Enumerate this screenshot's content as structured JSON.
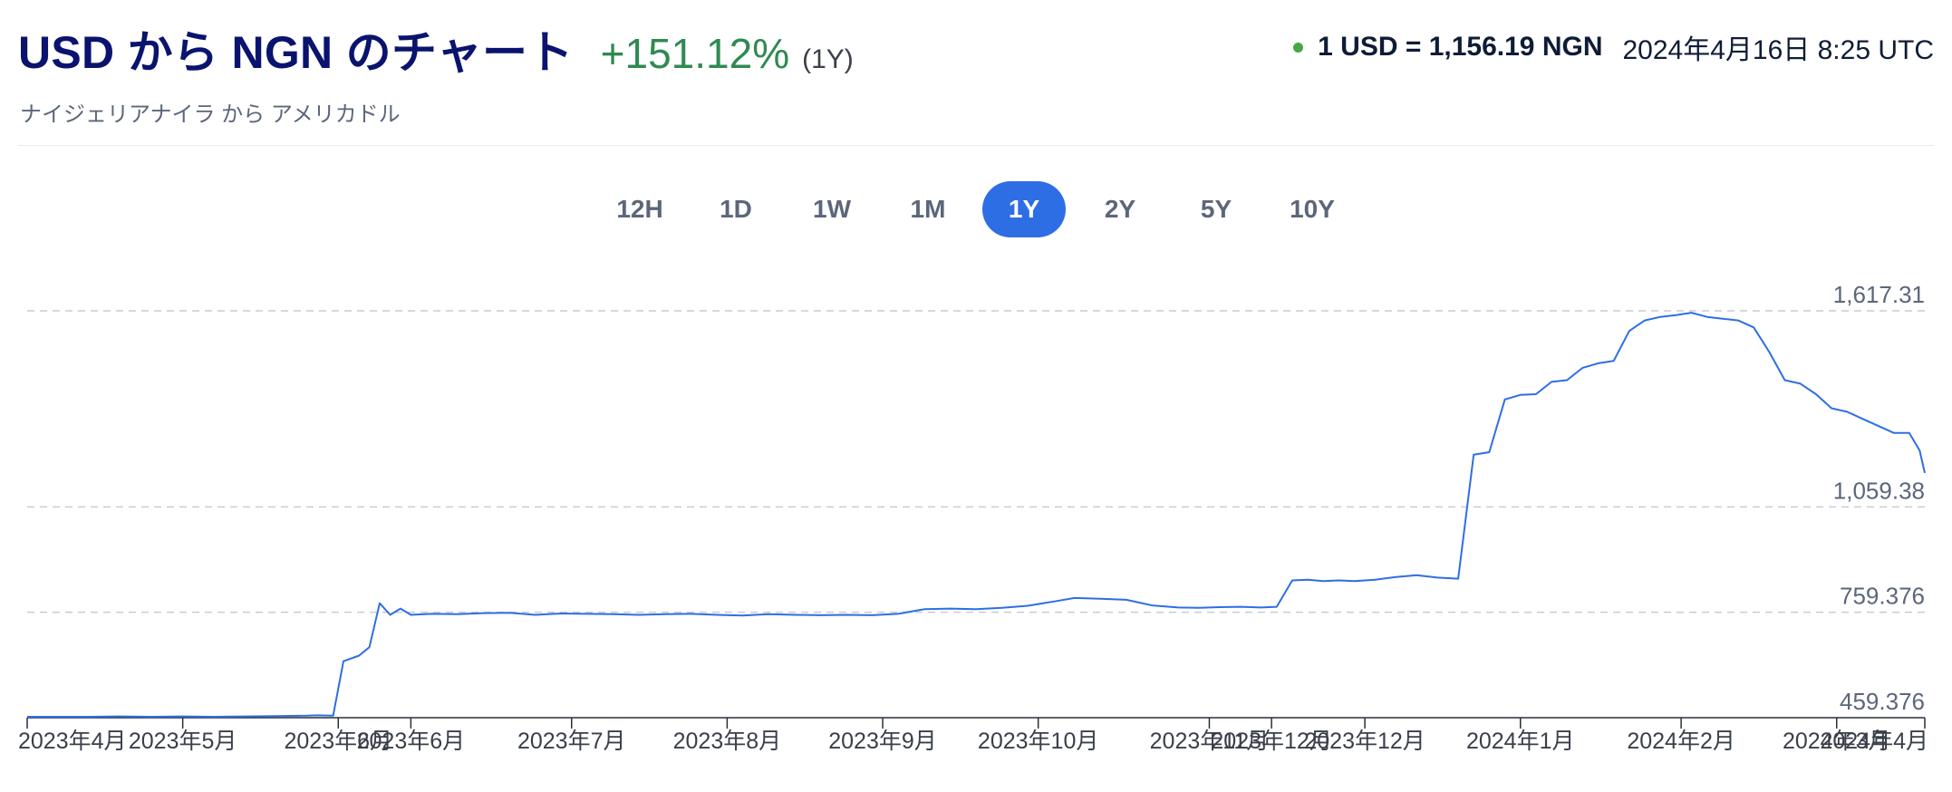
{
  "header": {
    "title": "USD から NGN のチャート",
    "change": "+151.12%",
    "period": "(1Y)",
    "subtitle": "ナイジェリアナイラ から アメリカドル",
    "rate": "1 USD = 1,156.19 NGN",
    "timestamp": "2024年4月16日 8:25 UTC"
  },
  "tabs": [
    {
      "label": "12H",
      "active": false
    },
    {
      "label": "1D",
      "active": false
    },
    {
      "label": "1W",
      "active": false
    },
    {
      "label": "1M",
      "active": false
    },
    {
      "label": "1Y",
      "active": true
    },
    {
      "label": "2Y",
      "active": false
    },
    {
      "label": "5Y",
      "active": false
    },
    {
      "label": "10Y",
      "active": false
    }
  ],
  "colors": {
    "line": "#2e6ee4",
    "positive": "#2f8a52",
    "live_dot": "#45a843",
    "title": "#0a146e",
    "grid": "#c8ccd2"
  },
  "chart_data": {
    "type": "line",
    "title": "",
    "xlabel": "",
    "ylabel": "",
    "grid": "horizontal dashed",
    "legend": "none",
    "yticks": [
      459.376,
      759.376,
      1059.38,
      1617.31
    ],
    "ytick_labels": [
      "459.376",
      "759.376",
      "1,059.38",
      "1,617.31"
    ],
    "ylim": [
      459.376,
      1617.31
    ],
    "xlim": [
      "2023-04-16",
      "2024-04-16"
    ],
    "xticks": [
      "2023-04-16",
      "2023-05-16",
      "2023-06-15",
      "2023-06-29",
      "2023-07-30",
      "2023-08-29",
      "2023-09-28",
      "2023-10-28",
      "2023-11-30",
      "2023-12-12",
      "2023-12-30",
      "2024-01-29",
      "2024-02-29",
      "2024-03-30",
      "2024-04-16"
    ],
    "xtick_labels": [
      "2023年4月",
      "2023年5月",
      "2023年6月",
      "2023年6月",
      "2023年7月",
      "2023年8月",
      "2023年9月",
      "2023年10月",
      "2023年11月",
      "2023年12月",
      "2023年12月",
      "2024年1月",
      "2024年2月",
      "2024年3月",
      "2024年4月"
    ],
    "series": [
      {
        "x": [
          "2023-04-16",
          "2023-04-22",
          "2023-04-28",
          "2023-05-04",
          "2023-05-10",
          "2023-05-16",
          "2023-05-22",
          "2023-05-28",
          "2023-06-03",
          "2023-06-09",
          "2023-06-11",
          "2023-06-14",
          "2023-06-16",
          "2023-06-19",
          "2023-06-21",
          "2023-06-23",
          "2023-06-25",
          "2023-06-27",
          "2023-06-29",
          "2023-07-03",
          "2023-07-08",
          "2023-07-13",
          "2023-07-18",
          "2023-07-23",
          "2023-07-28",
          "2023-08-02",
          "2023-08-07",
          "2023-08-12",
          "2023-08-17",
          "2023-08-22",
          "2023-08-27",
          "2023-09-01",
          "2023-09-06",
          "2023-09-11",
          "2023-09-16",
          "2023-09-21",
          "2023-09-26",
          "2023-10-01",
          "2023-10-06",
          "2023-10-11",
          "2023-10-16",
          "2023-10-21",
          "2023-10-26",
          "2023-10-31",
          "2023-11-04",
          "2023-11-09",
          "2023-11-14",
          "2023-11-19",
          "2023-11-24",
          "2023-11-28",
          "2023-12-02",
          "2023-12-06",
          "2023-12-10",
          "2023-12-13",
          "2023-12-16",
          "2023-12-19",
          "2023-12-22",
          "2023-12-25",
          "2023-12-28",
          "2024-01-01",
          "2024-01-05",
          "2024-01-09",
          "2024-01-13",
          "2024-01-17",
          "2024-01-20",
          "2024-01-23",
          "2024-01-26",
          "2024-01-29",
          "2024-02-01",
          "2024-02-04",
          "2024-02-07",
          "2024-02-10",
          "2024-02-13",
          "2024-02-16",
          "2024-02-19",
          "2024-02-22",
          "2024-02-25",
          "2024-02-28",
          "2024-03-02",
          "2024-03-05",
          "2024-03-08",
          "2024-03-11",
          "2024-03-14",
          "2024-03-17",
          "2024-03-20",
          "2024-03-23",
          "2024-03-26",
          "2024-03-29",
          "2024-04-01",
          "2024-04-04",
          "2024-04-07",
          "2024-04-10",
          "2024-04-13",
          "2024-04-15",
          "2024-04-16"
        ],
        "values": [
          462,
          462,
          462,
          463,
          462,
          463,
          462,
          463,
          464,
          465,
          466,
          465,
          620,
          636,
          660,
          785,
          752,
          770,
          752,
          755,
          754,
          757,
          758,
          752,
          756,
          755,
          754,
          752,
          754,
          755,
          752,
          750,
          754,
          752,
          751,
          752,
          751,
          755,
          768,
          770,
          768,
          772,
          778,
          790,
          800,
          798,
          795,
          779,
          773,
          772,
          774,
          775,
          773,
          775,
          850,
          852,
          848,
          850,
          848,
          852,
          860,
          865,
          858,
          855,
          1208,
          1215,
          1365,
          1378,
          1380,
          1415,
          1420,
          1455,
          1468,
          1475,
          1560,
          1590,
          1600,
          1605,
          1612,
          1600,
          1595,
          1590,
          1570,
          1500,
          1420,
          1410,
          1380,
          1340,
          1330,
          1310,
          1290,
          1270,
          1270,
          1220,
          1156
        ]
      }
    ]
  }
}
